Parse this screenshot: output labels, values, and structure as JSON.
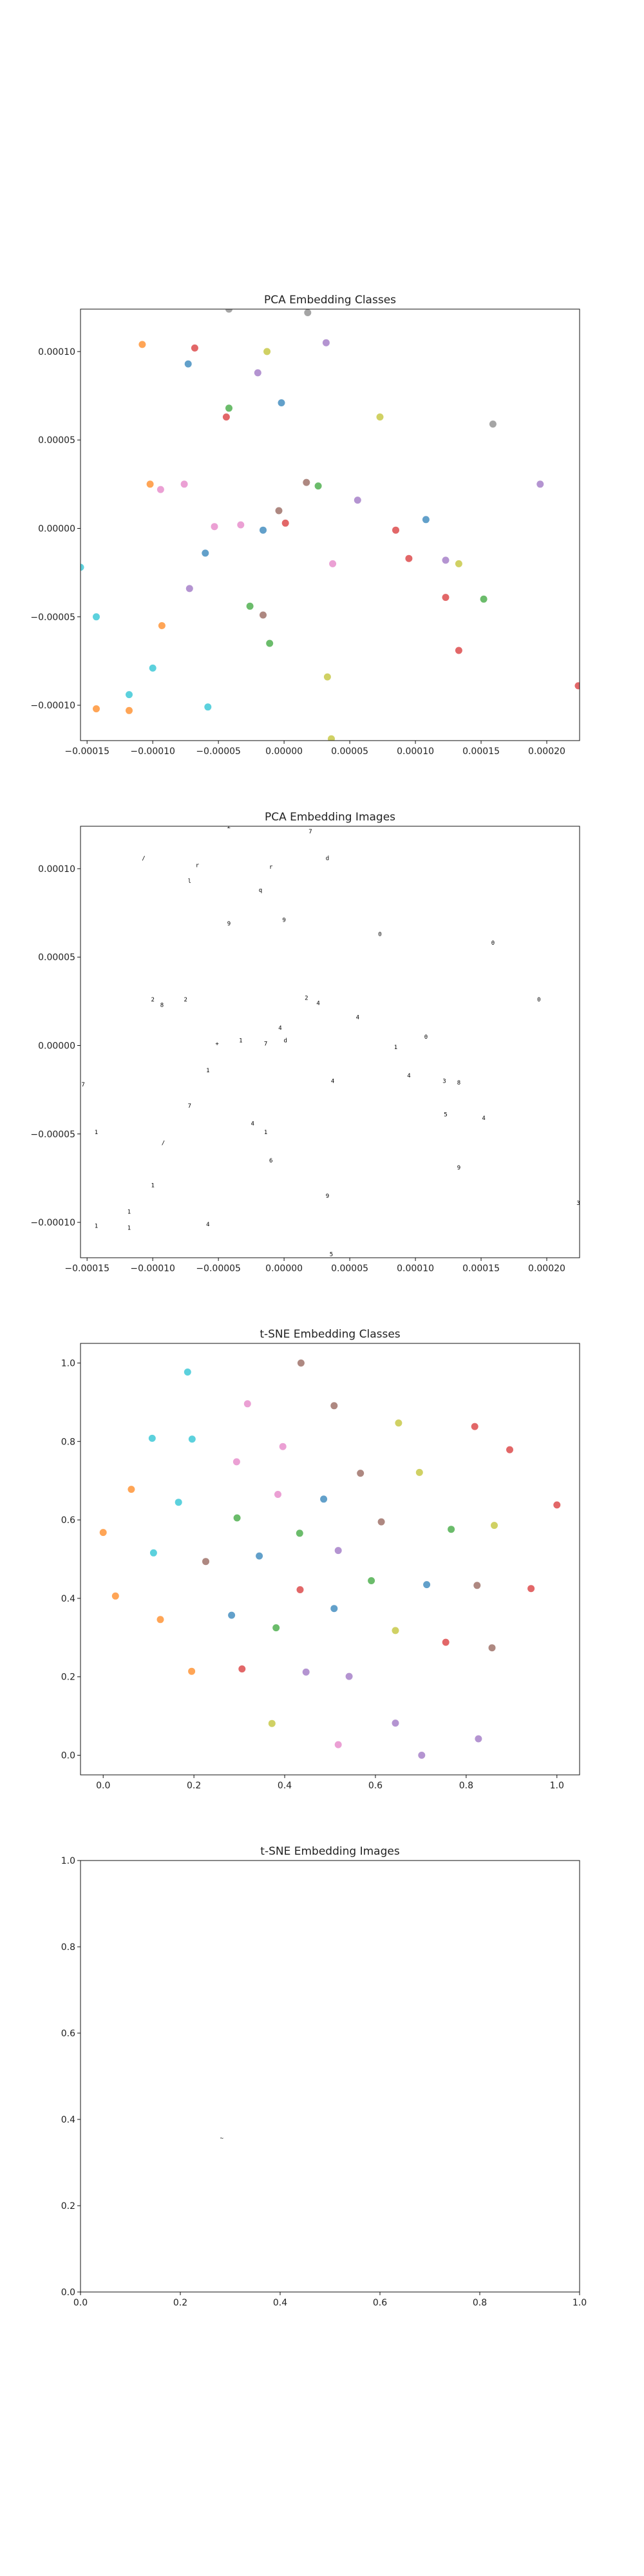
{
  "chart_data": [
    {
      "type": "scatter",
      "title": "PCA Embedding Classes",
      "xlim": [
        -0.000155,
        0.000225
      ],
      "ylim": [
        -0.00012,
        0.000124
      ],
      "xticks": [
        -0.00015,
        -0.0001,
        -5e-05,
        0.0,
        5e-05,
        0.0001,
        0.00015,
        0.0002
      ],
      "xtick_labels": [
        "−0.00015",
        "−0.00010",
        "−0.00005",
        "0.00000",
        "0.00005",
        "0.00010",
        "0.00015",
        "0.00020"
      ],
      "yticks": [
        -0.0001,
        -5e-05,
        0.0,
        5e-05,
        0.0001
      ],
      "ytick_labels": [
        "−0.00010",
        "−0.00005",
        "0.00000",
        "0.00005",
        "0.00010"
      ],
      "grid": false,
      "legend": "none",
      "points": [
        {
          "x": -0.000108,
          "y": 0.000104,
          "c": "#ff7f0e"
        },
        {
          "x": -6.8e-05,
          "y": 0.000102,
          "c": "#d62728"
        },
        {
          "x": -7.3e-05,
          "y": 9.3e-05,
          "c": "#1f77b4"
        },
        {
          "x": -1.3e-05,
          "y": 0.0001,
          "c": "#bcbd22"
        },
        {
          "x": 3.2e-05,
          "y": 0.000105,
          "c": "#9467bd"
        },
        {
          "x": 1.8e-05,
          "y": 0.000122,
          "c": "#7f7f7f"
        },
        {
          "x": -2e-05,
          "y": 8.8e-05,
          "c": "#9467bd"
        },
        {
          "x": -2e-06,
          "y": 7.1e-05,
          "c": "#1f77b4"
        },
        {
          "x": -4.2e-05,
          "y": 6.8e-05,
          "c": "#2ca02c"
        },
        {
          "x": -4.4e-05,
          "y": 6.3e-05,
          "c": "#d62728"
        },
        {
          "x": 7.3e-05,
          "y": 6.3e-05,
          "c": "#bcbd22"
        },
        {
          "x": 0.000159,
          "y": 5.9e-05,
          "c": "#7f7f7f"
        },
        {
          "x": -0.000102,
          "y": 2.5e-05,
          "c": "#ff7f0e"
        },
        {
          "x": -9.4e-05,
          "y": 2.2e-05,
          "c": "#e377c2"
        },
        {
          "x": -7.6e-05,
          "y": 2.5e-05,
          "c": "#e377c2"
        },
        {
          "x": 1.7e-05,
          "y": 2.6e-05,
          "c": "#8c564b"
        },
        {
          "x": 2.6e-05,
          "y": 2.4e-05,
          "c": "#2ca02c"
        },
        {
          "x": 5.6e-05,
          "y": 1.6e-05,
          "c": "#9467bd"
        },
        {
          "x": 0.000195,
          "y": 2.5e-05,
          "c": "#9467bd"
        },
        {
          "x": -4e-06,
          "y": 1e-05,
          "c": "#8c564b"
        },
        {
          "x": 0.000108,
          "y": 5e-06,
          "c": "#1f77b4"
        },
        {
          "x": -5.3e-05,
          "y": 1e-06,
          "c": "#e377c2"
        },
        {
          "x": -3.3e-05,
          "y": 2e-06,
          "c": "#e377c2"
        },
        {
          "x": 1e-06,
          "y": 3e-06,
          "c": "#d62728"
        },
        {
          "x": -1.6e-05,
          "y": -1e-06,
          "c": "#1f77b4"
        },
        {
          "x": 8.5e-05,
          "y": -1e-06,
          "c": "#d62728"
        },
        {
          "x": -6e-05,
          "y": -1.4e-05,
          "c": "#1f77b4"
        },
        {
          "x": 9.5e-05,
          "y": -1.7e-05,
          "c": "#d62728"
        },
        {
          "x": 0.000123,
          "y": -1.8e-05,
          "c": "#9467bd"
        },
        {
          "x": 3.7e-05,
          "y": -2e-05,
          "c": "#e377c2"
        },
        {
          "x": 0.000133,
          "y": -2e-05,
          "c": "#bcbd22"
        },
        {
          "x": -7.2e-05,
          "y": -3.4e-05,
          "c": "#9467bd"
        },
        {
          "x": 0.000123,
          "y": -3.9e-05,
          "c": "#d62728"
        },
        {
          "x": 0.000152,
          "y": -4e-05,
          "c": "#2ca02c"
        },
        {
          "x": -2.6e-05,
          "y": -4.4e-05,
          "c": "#2ca02c"
        },
        {
          "x": -1.6e-05,
          "y": -4.9e-05,
          "c": "#8c564b"
        },
        {
          "x": -0.000143,
          "y": -5e-05,
          "c": "#17becf"
        },
        {
          "x": -9.3e-05,
          "y": -5.5e-05,
          "c": "#ff7f0e"
        },
        {
          "x": -1.1e-05,
          "y": -6.5e-05,
          "c": "#2ca02c"
        },
        {
          "x": 0.000133,
          "y": -6.9e-05,
          "c": "#d62728"
        },
        {
          "x": -0.0001,
          "y": -7.9e-05,
          "c": "#17becf"
        },
        {
          "x": 3.3e-05,
          "y": -8.4e-05,
          "c": "#bcbd22"
        },
        {
          "x": 0.000224,
          "y": -8.9e-05,
          "c": "#d62728"
        },
        {
          "x": -0.000118,
          "y": -9.4e-05,
          "c": "#17becf"
        },
        {
          "x": -0.000143,
          "y": -0.000102,
          "c": "#ff7f0e"
        },
        {
          "x": -0.000118,
          "y": -0.000103,
          "c": "#ff7f0e"
        },
        {
          "x": -5.8e-05,
          "y": -0.000101,
          "c": "#17becf"
        },
        {
          "x": -0.000155,
          "y": -2.2e-05,
          "c": "#17becf"
        },
        {
          "x": -4.2e-05,
          "y": 0.000124,
          "c": "#7f7f7f"
        },
        {
          "x": 3.6e-05,
          "y": -0.000119,
          "c": "#bcbd22"
        }
      ]
    },
    {
      "type": "scatter",
      "title": "PCA Embedding Images",
      "xlim": [
        -0.000155,
        0.000225
      ],
      "ylim": [
        -0.00012,
        0.000124
      ],
      "xticks": [
        -0.00015,
        -0.0001,
        -5e-05,
        0.0,
        5e-05,
        0.0001,
        0.00015,
        0.0002
      ],
      "xtick_labels": [
        "−0.00015",
        "−0.00010",
        "−0.00005",
        "0.00000",
        "0.00005",
        "0.00010",
        "0.00015",
        "0.00020"
      ],
      "yticks": [
        -0.0001,
        -5e-05,
        0.0,
        5e-05,
        0.0001
      ],
      "ytick_labels": [
        "−0.00010",
        "−0.00005",
        "0.00000",
        "0.00005",
        "0.00010"
      ],
      "grid": false,
      "legend": "none",
      "marker_style": "tiny digit image thumbnails (black strokes on white)",
      "points": [
        {
          "x": -4.2e-05,
          "y": 0.000124,
          "g": "2"
        },
        {
          "x": 2e-05,
          "y": 0.000121,
          "g": "7"
        },
        {
          "x": -0.000107,
          "y": 0.000106,
          "g": "/"
        },
        {
          "x": -6.6e-05,
          "y": 0.000102,
          "g": "r"
        },
        {
          "x": -1e-05,
          "y": 0.000101,
          "g": "r"
        },
        {
          "x": 3.3e-05,
          "y": 0.000106,
          "g": "d"
        },
        {
          "x": -7.2e-05,
          "y": 9.3e-05,
          "g": "l"
        },
        {
          "x": -1.8e-05,
          "y": 8.8e-05,
          "g": "q"
        },
        {
          "x": -4.2e-05,
          "y": 6.9e-05,
          "g": "9"
        },
        {
          "x": 0.0,
          "y": 7.1e-05,
          "g": "9"
        },
        {
          "x": 7.3e-05,
          "y": 6.3e-05,
          "g": "0"
        },
        {
          "x": 0.000159,
          "y": 5.8e-05,
          "g": "0"
        },
        {
          "x": -0.0001,
          "y": 2.6e-05,
          "g": "2"
        },
        {
          "x": -9.3e-05,
          "y": 2.3e-05,
          "g": "8"
        },
        {
          "x": -7.5e-05,
          "y": 2.6e-05,
          "g": "2"
        },
        {
          "x": 1.7e-05,
          "y": 2.7e-05,
          "g": "2"
        },
        {
          "x": 2.6e-05,
          "y": 2.4e-05,
          "g": "4"
        },
        {
          "x": 5.6e-05,
          "y": 1.6e-05,
          "g": "4"
        },
        {
          "x": 0.000194,
          "y": 2.6e-05,
          "g": "0"
        },
        {
          "x": -3e-06,
          "y": 1e-05,
          "g": "4"
        },
        {
          "x": 0.000108,
          "y": 5e-06,
          "g": "0"
        },
        {
          "x": -5.1e-05,
          "y": 1e-06,
          "g": "+"
        },
        {
          "x": -3.3e-05,
          "y": 3e-06,
          "g": "1"
        },
        {
          "x": 1e-06,
          "y": 3e-06,
          "g": "d"
        },
        {
          "x": -1.4e-05,
          "y": 1e-06,
          "g": "7"
        },
        {
          "x": 8.5e-05,
          "y": -1e-06,
          "g": "1"
        },
        {
          "x": -5.8e-05,
          "y": -1.4e-05,
          "g": "1"
        },
        {
          "x": 9.5e-05,
          "y": -1.7e-05,
          "g": "4"
        },
        {
          "x": 0.000122,
          "y": -2e-05,
          "g": "3"
        },
        {
          "x": 3.7e-05,
          "y": -2e-05,
          "g": "4"
        },
        {
          "x": 0.000133,
          "y": -2.1e-05,
          "g": "8"
        },
        {
          "x": -7.2e-05,
          "y": -3.4e-05,
          "g": "7"
        },
        {
          "x": 0.000123,
          "y": -3.9e-05,
          "g": "5"
        },
        {
          "x": 0.000152,
          "y": -4.1e-05,
          "g": "4"
        },
        {
          "x": -2.4e-05,
          "y": -4.4e-05,
          "g": "4"
        },
        {
          "x": -1.4e-05,
          "y": -4.9e-05,
          "g": "1"
        },
        {
          "x": -0.000143,
          "y": -4.9e-05,
          "g": "1"
        },
        {
          "x": -9.2e-05,
          "y": -5.5e-05,
          "g": "/"
        },
        {
          "x": -1e-05,
          "y": -6.5e-05,
          "g": "6"
        },
        {
          "x": 0.000133,
          "y": -6.9e-05,
          "g": "9"
        },
        {
          "x": -0.0001,
          "y": -7.9e-05,
          "g": "1"
        },
        {
          "x": 3.3e-05,
          "y": -8.5e-05,
          "g": "9"
        },
        {
          "x": 0.000224,
          "y": -8.9e-05,
          "g": "3"
        },
        {
          "x": -0.000118,
          "y": -9.4e-05,
          "g": "1"
        },
        {
          "x": -0.000143,
          "y": -0.000102,
          "g": "1"
        },
        {
          "x": -0.000118,
          "y": -0.000103,
          "g": "1"
        },
        {
          "x": -5.8e-05,
          "y": -0.000101,
          "g": "4"
        },
        {
          "x": -0.000153,
          "y": -2.2e-05,
          "g": "7"
        },
        {
          "x": 3.6e-05,
          "y": -0.000118,
          "g": "5"
        }
      ]
    },
    {
      "type": "scatter",
      "title": "t-SNE Embedding Classes",
      "xlim": [
        -0.05,
        1.05
      ],
      "ylim": [
        -0.05,
        1.05
      ],
      "xticks": [
        0.0,
        0.2,
        0.4,
        0.6,
        0.8,
        1.0
      ],
      "xtick_labels": [
        "0.0",
        "0.2",
        "0.4",
        "0.6",
        "0.8",
        "1.0"
      ],
      "yticks": [
        0.0,
        0.2,
        0.4,
        0.6,
        0.8,
        1.0
      ],
      "ytick_labels": [
        "0.0",
        "0.2",
        "0.4",
        "0.6",
        "0.8",
        "1.0"
      ],
      "grid": false,
      "legend": "none",
      "points": [
        {
          "x": 0.436,
          "y": 1.0,
          "c": "#8c564b"
        },
        {
          "x": 0.186,
          "y": 0.977,
          "c": "#17becf"
        },
        {
          "x": 0.318,
          "y": 0.896,
          "c": "#e377c2"
        },
        {
          "x": 0.509,
          "y": 0.891,
          "c": "#8c564b"
        },
        {
          "x": 0.651,
          "y": 0.847,
          "c": "#bcbd22"
        },
        {
          "x": 0.819,
          "y": 0.838,
          "c": "#d62728"
        },
        {
          "x": 0.108,
          "y": 0.808,
          "c": "#17becf"
        },
        {
          "x": 0.196,
          "y": 0.806,
          "c": "#17becf"
        },
        {
          "x": 0.396,
          "y": 0.787,
          "c": "#e377c2"
        },
        {
          "x": 0.896,
          "y": 0.779,
          "c": "#d62728"
        },
        {
          "x": 0.294,
          "y": 0.748,
          "c": "#e377c2"
        },
        {
          "x": 0.567,
          "y": 0.719,
          "c": "#8c564b"
        },
        {
          "x": 0.697,
          "y": 0.721,
          "c": "#bcbd22"
        },
        {
          "x": 0.062,
          "y": 0.678,
          "c": "#ff7f0e"
        },
        {
          "x": 0.385,
          "y": 0.665,
          "c": "#e377c2"
        },
        {
          "x": 0.486,
          "y": 0.653,
          "c": "#1f77b4"
        },
        {
          "x": 0.166,
          "y": 0.645,
          "c": "#17becf"
        },
        {
          "x": 1.0,
          "y": 0.638,
          "c": "#d62728"
        },
        {
          "x": 0.295,
          "y": 0.605,
          "c": "#2ca02c"
        },
        {
          "x": 0.613,
          "y": 0.595,
          "c": "#8c564b"
        },
        {
          "x": 0.767,
          "y": 0.576,
          "c": "#2ca02c"
        },
        {
          "x": 0.862,
          "y": 0.586,
          "c": "#bcbd22"
        },
        {
          "x": 0.0,
          "y": 0.568,
          "c": "#ff7f0e"
        },
        {
          "x": 0.433,
          "y": 0.566,
          "c": "#2ca02c"
        },
        {
          "x": 0.111,
          "y": 0.516,
          "c": "#17becf"
        },
        {
          "x": 0.344,
          "y": 0.508,
          "c": "#1f77b4"
        },
        {
          "x": 0.518,
          "y": 0.522,
          "c": "#9467bd"
        },
        {
          "x": 0.226,
          "y": 0.494,
          "c": "#8c564b"
        },
        {
          "x": 0.591,
          "y": 0.445,
          "c": "#2ca02c"
        },
        {
          "x": 0.713,
          "y": 0.435,
          "c": "#1f77b4"
        },
        {
          "x": 0.824,
          "y": 0.433,
          "c": "#8c564b"
        },
        {
          "x": 0.943,
          "y": 0.425,
          "c": "#d62728"
        },
        {
          "x": 0.434,
          "y": 0.422,
          "c": "#d62728"
        },
        {
          "x": 0.027,
          "y": 0.406,
          "c": "#ff7f0e"
        },
        {
          "x": 0.509,
          "y": 0.374,
          "c": "#1f77b4"
        },
        {
          "x": 0.283,
          "y": 0.357,
          "c": "#1f77b4"
        },
        {
          "x": 0.126,
          "y": 0.346,
          "c": "#ff7f0e"
        },
        {
          "x": 0.381,
          "y": 0.325,
          "c": "#2ca02c"
        },
        {
          "x": 0.644,
          "y": 0.318,
          "c": "#bcbd22"
        },
        {
          "x": 0.755,
          "y": 0.288,
          "c": "#d62728"
        },
        {
          "x": 0.857,
          "y": 0.274,
          "c": "#8c564b"
        },
        {
          "x": 0.195,
          "y": 0.214,
          "c": "#ff7f0e"
        },
        {
          "x": 0.306,
          "y": 0.22,
          "c": "#d62728"
        },
        {
          "x": 0.447,
          "y": 0.212,
          "c": "#9467bd"
        },
        {
          "x": 0.542,
          "y": 0.201,
          "c": "#9467bd"
        },
        {
          "x": 0.372,
          "y": 0.081,
          "c": "#bcbd22"
        },
        {
          "x": 0.644,
          "y": 0.082,
          "c": "#9467bd"
        },
        {
          "x": 0.518,
          "y": 0.027,
          "c": "#e377c2"
        },
        {
          "x": 0.827,
          "y": 0.042,
          "c": "#9467bd"
        },
        {
          "x": 0.702,
          "y": 0.0,
          "c": "#9467bd"
        }
      ]
    },
    {
      "type": "scatter",
      "title": "t-SNE Embedding Images",
      "xlim": [
        0.0,
        1.0
      ],
      "ylim": [
        0.0,
        1.0
      ],
      "xticks": [
        0.0,
        0.2,
        0.4,
        0.6,
        0.8,
        1.0
      ],
      "xtick_labels": [
        "0.0",
        "0.2",
        "0.4",
        "0.6",
        "0.8",
        "1.0"
      ],
      "yticks": [
        0.0,
        0.2,
        0.4,
        0.6,
        0.8,
        1.0
      ],
      "ytick_labels": [
        "0.0",
        "0.2",
        "0.4",
        "0.6",
        "0.8",
        "1.0"
      ],
      "grid": false,
      "legend": "none",
      "marker_style": "tiny digit image thumbnails (black strokes on white)",
      "points": [
        {
          "x": 0.283,
          "y": 0.357,
          "g": "~"
        }
      ]
    }
  ]
}
